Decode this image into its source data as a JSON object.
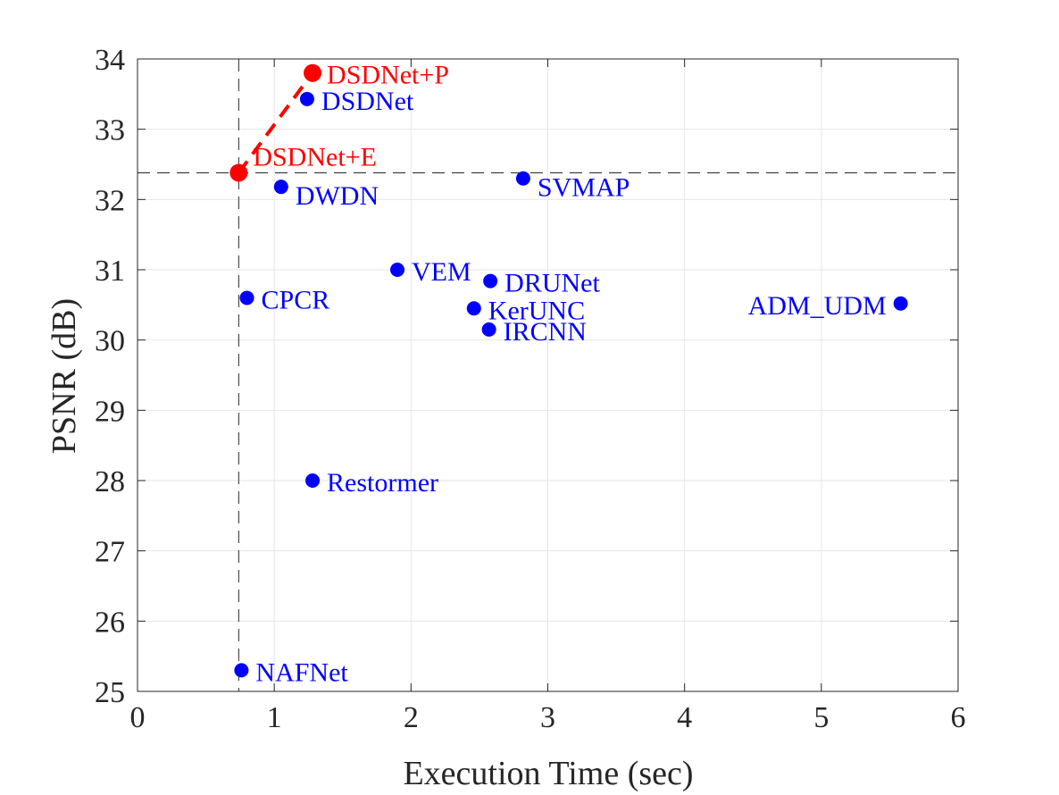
{
  "chart_data": {
    "type": "scatter",
    "xlabel": "Execution Time (sec)",
    "ylabel": "PSNR (dB)",
    "xlim": [
      0,
      6
    ],
    "ylim": [
      25,
      34
    ],
    "xticks": [
      0,
      1,
      2,
      3,
      4,
      5,
      6
    ],
    "yticks": [
      25,
      26,
      27,
      28,
      29,
      30,
      31,
      32,
      33,
      34
    ],
    "grid": true,
    "colors": {
      "baseline": "#0000ff",
      "ours": "#ff0000",
      "axis": "#262626",
      "grid": "#e6e6e6",
      "refline": "#262626"
    },
    "points": [
      {
        "name": "DSDNet+P",
        "x": 1.28,
        "y": 33.8,
        "group": "ours",
        "label_side": "right"
      },
      {
        "name": "DSDNet",
        "x": 1.24,
        "y": 33.43,
        "group": "baseline",
        "label_side": "right"
      },
      {
        "name": "DSDNet+E",
        "x": 0.74,
        "y": 32.38,
        "group": "ours",
        "label_side": "above-right"
      },
      {
        "name": "DWDN",
        "x": 1.05,
        "y": 32.18,
        "group": "baseline",
        "label_side": "below-right"
      },
      {
        "name": "SVMAP",
        "x": 2.82,
        "y": 32.3,
        "group": "baseline",
        "label_side": "below-right"
      },
      {
        "name": "VEM",
        "x": 1.9,
        "y": 31.0,
        "group": "baseline",
        "label_side": "right"
      },
      {
        "name": "DRUNet",
        "x": 2.58,
        "y": 30.84,
        "group": "baseline",
        "label_side": "right"
      },
      {
        "name": "CPCR",
        "x": 0.8,
        "y": 30.6,
        "group": "baseline",
        "label_side": "right"
      },
      {
        "name": "KerUNC",
        "x": 2.46,
        "y": 30.45,
        "group": "baseline",
        "label_side": "right"
      },
      {
        "name": "ADM_UDM",
        "x": 5.58,
        "y": 30.52,
        "group": "baseline",
        "label_side": "left"
      },
      {
        "name": "IRCNN",
        "x": 2.57,
        "y": 30.15,
        "group": "baseline",
        "label_side": "right"
      },
      {
        "name": "Restormer",
        "x": 1.28,
        "y": 28.0,
        "group": "baseline",
        "label_side": "right"
      },
      {
        "name": "NAFNet",
        "x": 0.76,
        "y": 25.3,
        "group": "baseline",
        "label_side": "right"
      }
    ],
    "ours_line": {
      "from": "DSDNet+E",
      "to": "DSDNet+P"
    },
    "reference_lines": {
      "x": 0.74,
      "y": 32.38
    }
  }
}
